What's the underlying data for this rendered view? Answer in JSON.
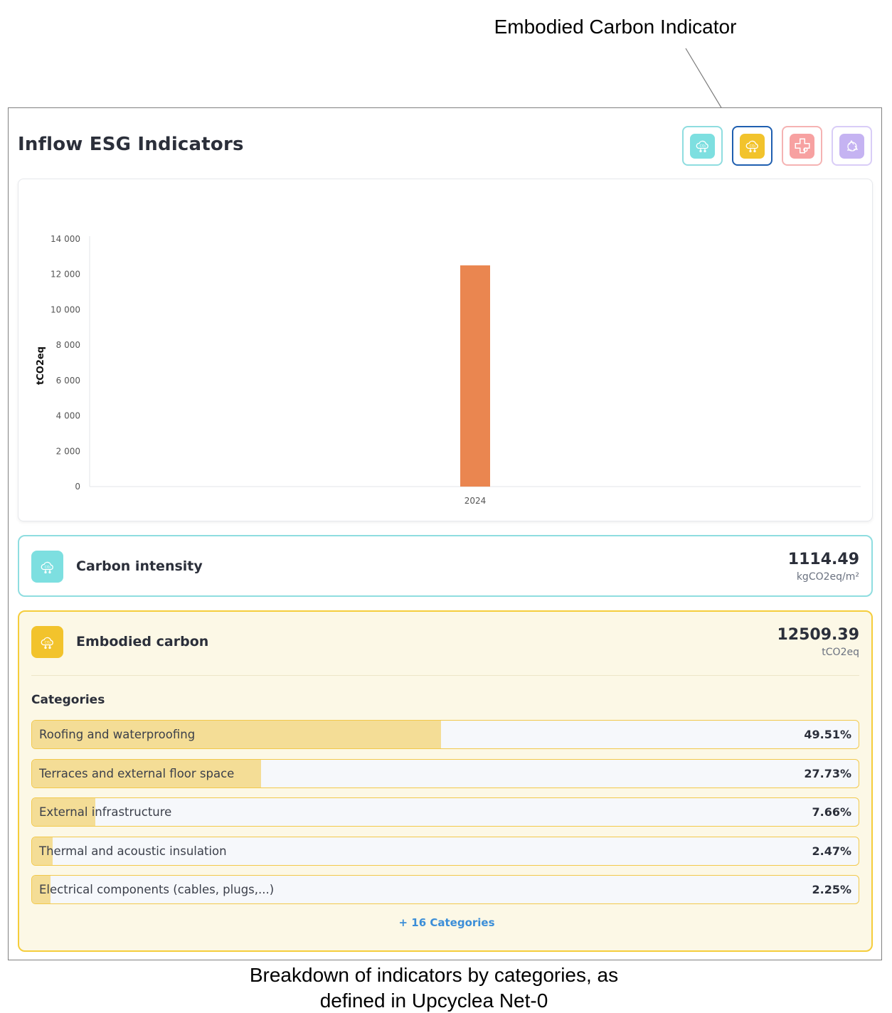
{
  "annotations": {
    "top_callout": "Embodied Carbon Indicator",
    "caption_line1": "Breakdown of indicators by categories, as",
    "caption_line2": "defined in Upcyclea Net-0"
  },
  "panel": {
    "title": "Inflow ESG Indicators",
    "indicator_buttons": [
      {
        "icon": "co2-cloud-icon",
        "color": "#7ddfe0",
        "border": "#8fdde0",
        "selected": false
      },
      {
        "icon": "co2-cloud-icon",
        "color": "#f2c32c",
        "border": "#1f5fb0",
        "selected": true
      },
      {
        "icon": "health-cross-icon",
        "color": "#f7a1a1",
        "border": "#f5b3b3",
        "selected": false
      },
      {
        "icon": "recycle-icon",
        "color": "#c5b3f2",
        "border": "#d9cdf7",
        "selected": false
      }
    ]
  },
  "chart_data": {
    "type": "bar",
    "categories": [
      "2024"
    ],
    "values": [
      12509.39
    ],
    "title": "",
    "xlabel": "",
    "ylabel": "tCO2eq",
    "ylim": [
      0,
      14000
    ],
    "yticks": [
      "0",
      "2 000",
      "4 000",
      "6 000",
      "8 000",
      "10 000",
      "12 000",
      "14 000"
    ],
    "bar_color": "#ea8650",
    "grid": false
  },
  "carbon_intensity": {
    "label": "Carbon intensity",
    "value": "1114.49",
    "unit": "kgCO2eq/m²"
  },
  "embodied_carbon": {
    "label": "Embodied carbon",
    "value": "12509.39",
    "unit": "tCO2eq",
    "categories_heading": "Categories",
    "categories": [
      {
        "name": "Roofing and waterproofing",
        "percent": "49.51%",
        "share": 0.4951
      },
      {
        "name": "Terraces and external floor space",
        "percent": "27.73%",
        "share": 0.2773
      },
      {
        "name": "External infrastructure",
        "percent": "7.66%",
        "share": 0.0766
      },
      {
        "name": "Thermal and acoustic insulation",
        "percent": "2.47%",
        "share": 0.0247
      },
      {
        "name": "Electrical components (cables, plugs,...)",
        "percent": "2.25%",
        "share": 0.0225
      }
    ],
    "more_label": "+ 16 Categories"
  }
}
